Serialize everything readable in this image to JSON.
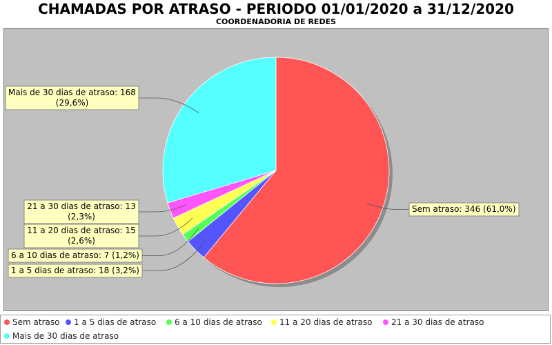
{
  "chart_data": {
    "type": "pie",
    "title": "CHAMADAS POR ATRASO - PERIODO 01/01/2020 a 31/12/2020",
    "subtitle": "COORDENADORIA DE REDES",
    "slices": [
      {
        "name": "Sem atraso",
        "value": 346,
        "percent": "61,0%",
        "label": "Sem atraso: 346 (61,0%)",
        "color": "#ff5555"
      },
      {
        "name": "1 a 5 dias de atraso",
        "value": 18,
        "percent": "3,2%",
        "label": "1 a 5 dias de atraso: 18 (3,2%)",
        "color": "#5555ff"
      },
      {
        "name": "6 a 10 dias de atraso",
        "value": 7,
        "percent": "1,2%",
        "label": "6 a 10 dias de atraso: 7 (1,2%)",
        "color": "#55ff55"
      },
      {
        "name": "11 a 20 dias de atraso",
        "value": 15,
        "percent": "2,6%",
        "label": "11 a 20 dias de atraso: 15",
        "label2": "(2,6%)",
        "color": "#ffff55"
      },
      {
        "name": "21 a 30 dias de atraso",
        "value": 13,
        "percent": "2,3%",
        "label": "21 a 30 dias de atraso: 13",
        "label2": "(2,3%)",
        "color": "#ff55ff"
      },
      {
        "name": "Mais de 30 dias de atraso",
        "value": 168,
        "percent": "29,6%",
        "label": "Mais de 30 dias de atraso: 168",
        "label2": "(29,6%)",
        "color": "#55ffff"
      }
    ],
    "legend_placement": "bottom",
    "background_color": "#c0c0c0",
    "label_box_color": "#ffffc0"
  }
}
